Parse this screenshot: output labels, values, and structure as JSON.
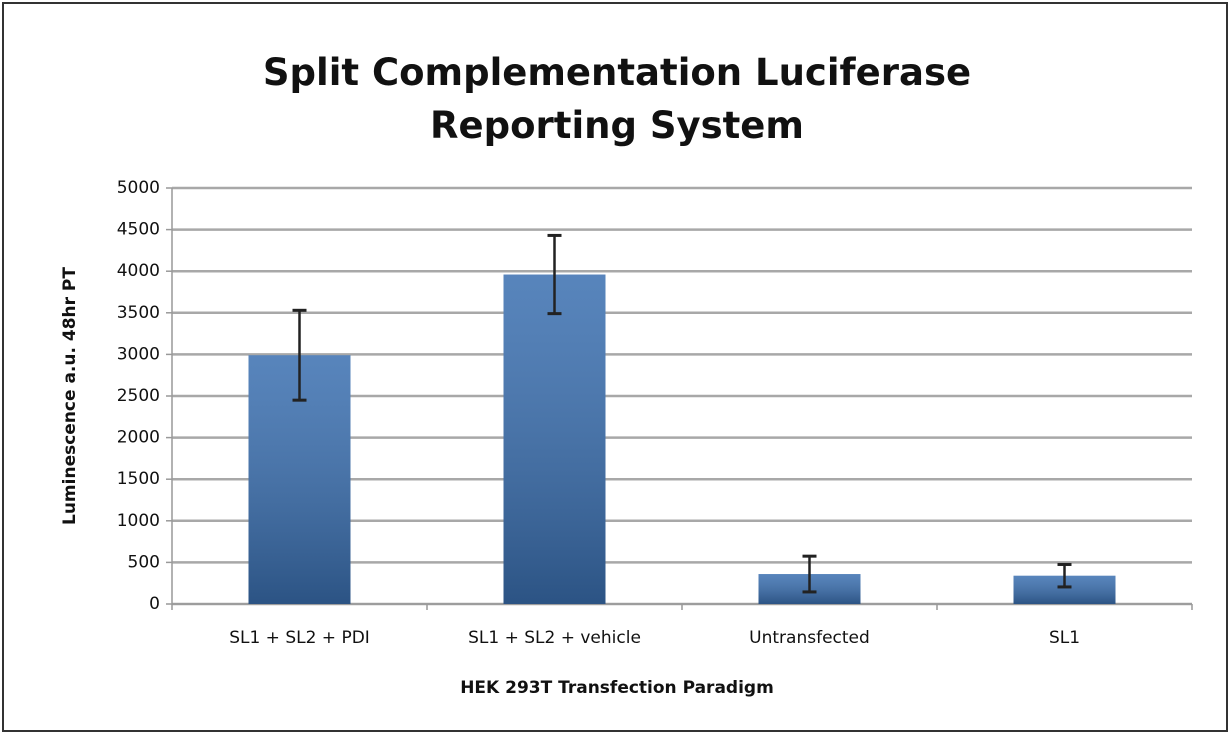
{
  "chart_data": {
    "type": "bar",
    "title": "Split Complementation Luciferase Reporting System",
    "xlabel": "HEK 293T Transfection Paradigm",
    "ylabel": "Luminescence a.u. 48hr PT",
    "categories": [
      "SL1 + SL2 + PDI",
      "SL1 + SL2 + vehicle",
      "Untransfected",
      "SL1"
    ],
    "values": [
      2990,
      3960,
      360,
      340
    ],
    "errors": [
      540,
      470,
      215,
      135
    ],
    "color": "#3a6fb0",
    "ylim": [
      0,
      5000
    ],
    "yticks": [
      0,
      500,
      1000,
      1500,
      2000,
      2500,
      3000,
      3500,
      4000,
      4500,
      5000
    ],
    "grid": true
  }
}
